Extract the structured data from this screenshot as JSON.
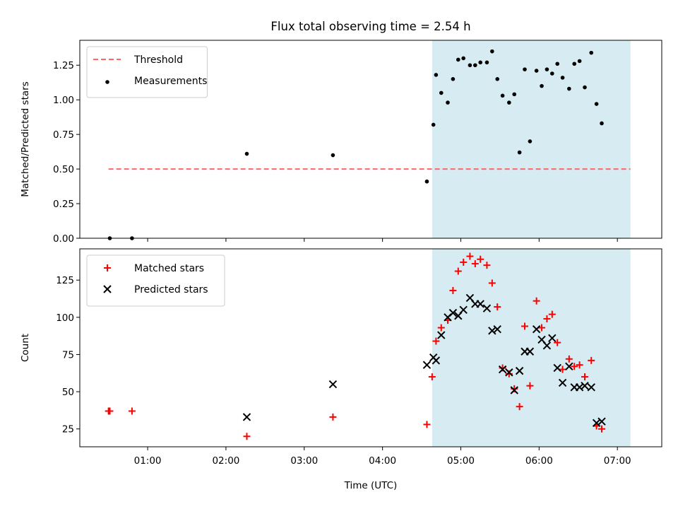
{
  "title": "Flux total observing time = 2.54 h",
  "xlabel": "Time (UTC)",
  "x_ticks": [
    "01:00",
    "02:00",
    "03:00",
    "04:00",
    "05:00",
    "06:00",
    "07:00"
  ],
  "colors": {
    "threshold": "#ff6666",
    "measurement": "#000000",
    "matched": "#ff0000",
    "predicted": "#000000",
    "span": "#add8e6"
  },
  "chart_data": [
    {
      "type": "scatter",
      "ylabel": "Matched/Predicted stars",
      "xlim": [
        "00:08",
        "07:34"
      ],
      "ylim": [
        0,
        1.43
      ],
      "y_ticks": [
        "0.00",
        "0.25",
        "0.50",
        "0.75",
        "1.00",
        "1.25"
      ],
      "legend_position": "top-left",
      "shaded_span": [
        "04:38",
        "07:10"
      ],
      "threshold": {
        "name": "Threshold",
        "value": 0.5,
        "x_range": [
          "00:30",
          "07:10"
        ]
      },
      "series": [
        {
          "name": "Measurements",
          "marker": "dot",
          "points": [
            [
              "00:31",
              0.0
            ],
            [
              "00:48",
              0.0
            ],
            [
              "02:16",
              0.61
            ],
            [
              "03:22",
              0.6
            ],
            [
              "04:34",
              0.41
            ],
            [
              "04:39",
              0.82
            ],
            [
              "04:41",
              1.18
            ],
            [
              "04:45",
              1.05
            ],
            [
              "04:50",
              0.98
            ],
            [
              "04:54",
              1.15
            ],
            [
              "04:58",
              1.29
            ],
            [
              "05:02",
              1.3
            ],
            [
              "05:07",
              1.25
            ],
            [
              "05:11",
              1.25
            ],
            [
              "05:15",
              1.27
            ],
            [
              "05:20",
              1.27
            ],
            [
              "05:24",
              1.35
            ],
            [
              "05:28",
              1.15
            ],
            [
              "05:32",
              1.03
            ],
            [
              "05:37",
              0.98
            ],
            [
              "05:41",
              1.04
            ],
            [
              "05:45",
              0.62
            ],
            [
              "05:49",
              1.22
            ],
            [
              "05:53",
              0.7
            ],
            [
              "05:58",
              1.21
            ],
            [
              "06:02",
              1.1
            ],
            [
              "06:06",
              1.22
            ],
            [
              "06:10",
              1.19
            ],
            [
              "06:14",
              1.26
            ],
            [
              "06:18",
              1.16
            ],
            [
              "06:23",
              1.08
            ],
            [
              "06:27",
              1.26
            ],
            [
              "06:31",
              1.28
            ],
            [
              "06:35",
              1.09
            ],
            [
              "06:40",
              1.34
            ],
            [
              "06:44",
              0.97
            ],
            [
              "06:48",
              0.83
            ]
          ]
        }
      ]
    },
    {
      "type": "scatter",
      "ylabel": "Count",
      "xlim": [
        "00:08",
        "07:34"
      ],
      "ylim": [
        13,
        146
      ],
      "y_ticks": [
        "25",
        "50",
        "75",
        "100",
        "125"
      ],
      "legend_position": "top-left",
      "shaded_span": [
        "04:38",
        "07:10"
      ],
      "series": [
        {
          "name": "Matched stars",
          "marker": "plus",
          "points": [
            [
              "00:30",
              37
            ],
            [
              "00:31",
              37
            ],
            [
              "00:48",
              37
            ],
            [
              "02:16",
              20
            ],
            [
              "03:22",
              33
            ],
            [
              "04:34",
              28
            ],
            [
              "04:38",
              60
            ],
            [
              "04:41",
              84
            ],
            [
              "04:45",
              93
            ],
            [
              "04:50",
              98
            ],
            [
              "04:54",
              118
            ],
            [
              "04:58",
              131
            ],
            [
              "05:02",
              137
            ],
            [
              "05:07",
              141
            ],
            [
              "05:11",
              136
            ],
            [
              "05:15",
              139
            ],
            [
              "05:20",
              135
            ],
            [
              "05:24",
              123
            ],
            [
              "05:28",
              107
            ],
            [
              "05:32",
              66
            ],
            [
              "05:37",
              62
            ],
            [
              "05:41",
              52
            ],
            [
              "05:45",
              40
            ],
            [
              "05:49",
              94
            ],
            [
              "05:53",
              54
            ],
            [
              "05:58",
              111
            ],
            [
              "06:02",
              93
            ],
            [
              "06:06",
              99
            ],
            [
              "06:10",
              102
            ],
            [
              "06:14",
              83
            ],
            [
              "06:18",
              65
            ],
            [
              "06:23",
              72
            ],
            [
              "06:27",
              67
            ],
            [
              "06:31",
              68
            ],
            [
              "06:35",
              60
            ],
            [
              "06:40",
              71
            ],
            [
              "06:44",
              27
            ],
            [
              "06:48",
              25
            ]
          ]
        },
        {
          "name": "Predicted stars",
          "marker": "x",
          "points": [
            [
              "02:16",
              33
            ],
            [
              "03:22",
              55
            ],
            [
              "04:34",
              68
            ],
            [
              "04:39",
              73
            ],
            [
              "04:41",
              71
            ],
            [
              "04:45",
              88
            ],
            [
              "04:50",
              100
            ],
            [
              "04:54",
              103
            ],
            [
              "04:58",
              101
            ],
            [
              "05:02",
              105
            ],
            [
              "05:07",
              113
            ],
            [
              "05:11",
              109
            ],
            [
              "05:15",
              109
            ],
            [
              "05:20",
              106
            ],
            [
              "05:24",
              91
            ],
            [
              "05:28",
              92
            ],
            [
              "05:32",
              65
            ],
            [
              "05:37",
              63
            ],
            [
              "05:41",
              51
            ],
            [
              "05:45",
              64
            ],
            [
              "05:49",
              77
            ],
            [
              "05:53",
              77
            ],
            [
              "05:58",
              92
            ],
            [
              "06:02",
              85
            ],
            [
              "06:06",
              81
            ],
            [
              "06:10",
              86
            ],
            [
              "06:14",
              66
            ],
            [
              "06:18",
              56
            ],
            [
              "06:23",
              67
            ],
            [
              "06:27",
              53
            ],
            [
              "06:31",
              53
            ],
            [
              "06:35",
              54
            ],
            [
              "06:40",
              53
            ],
            [
              "06:44",
              29
            ],
            [
              "06:48",
              30
            ]
          ]
        }
      ]
    }
  ]
}
